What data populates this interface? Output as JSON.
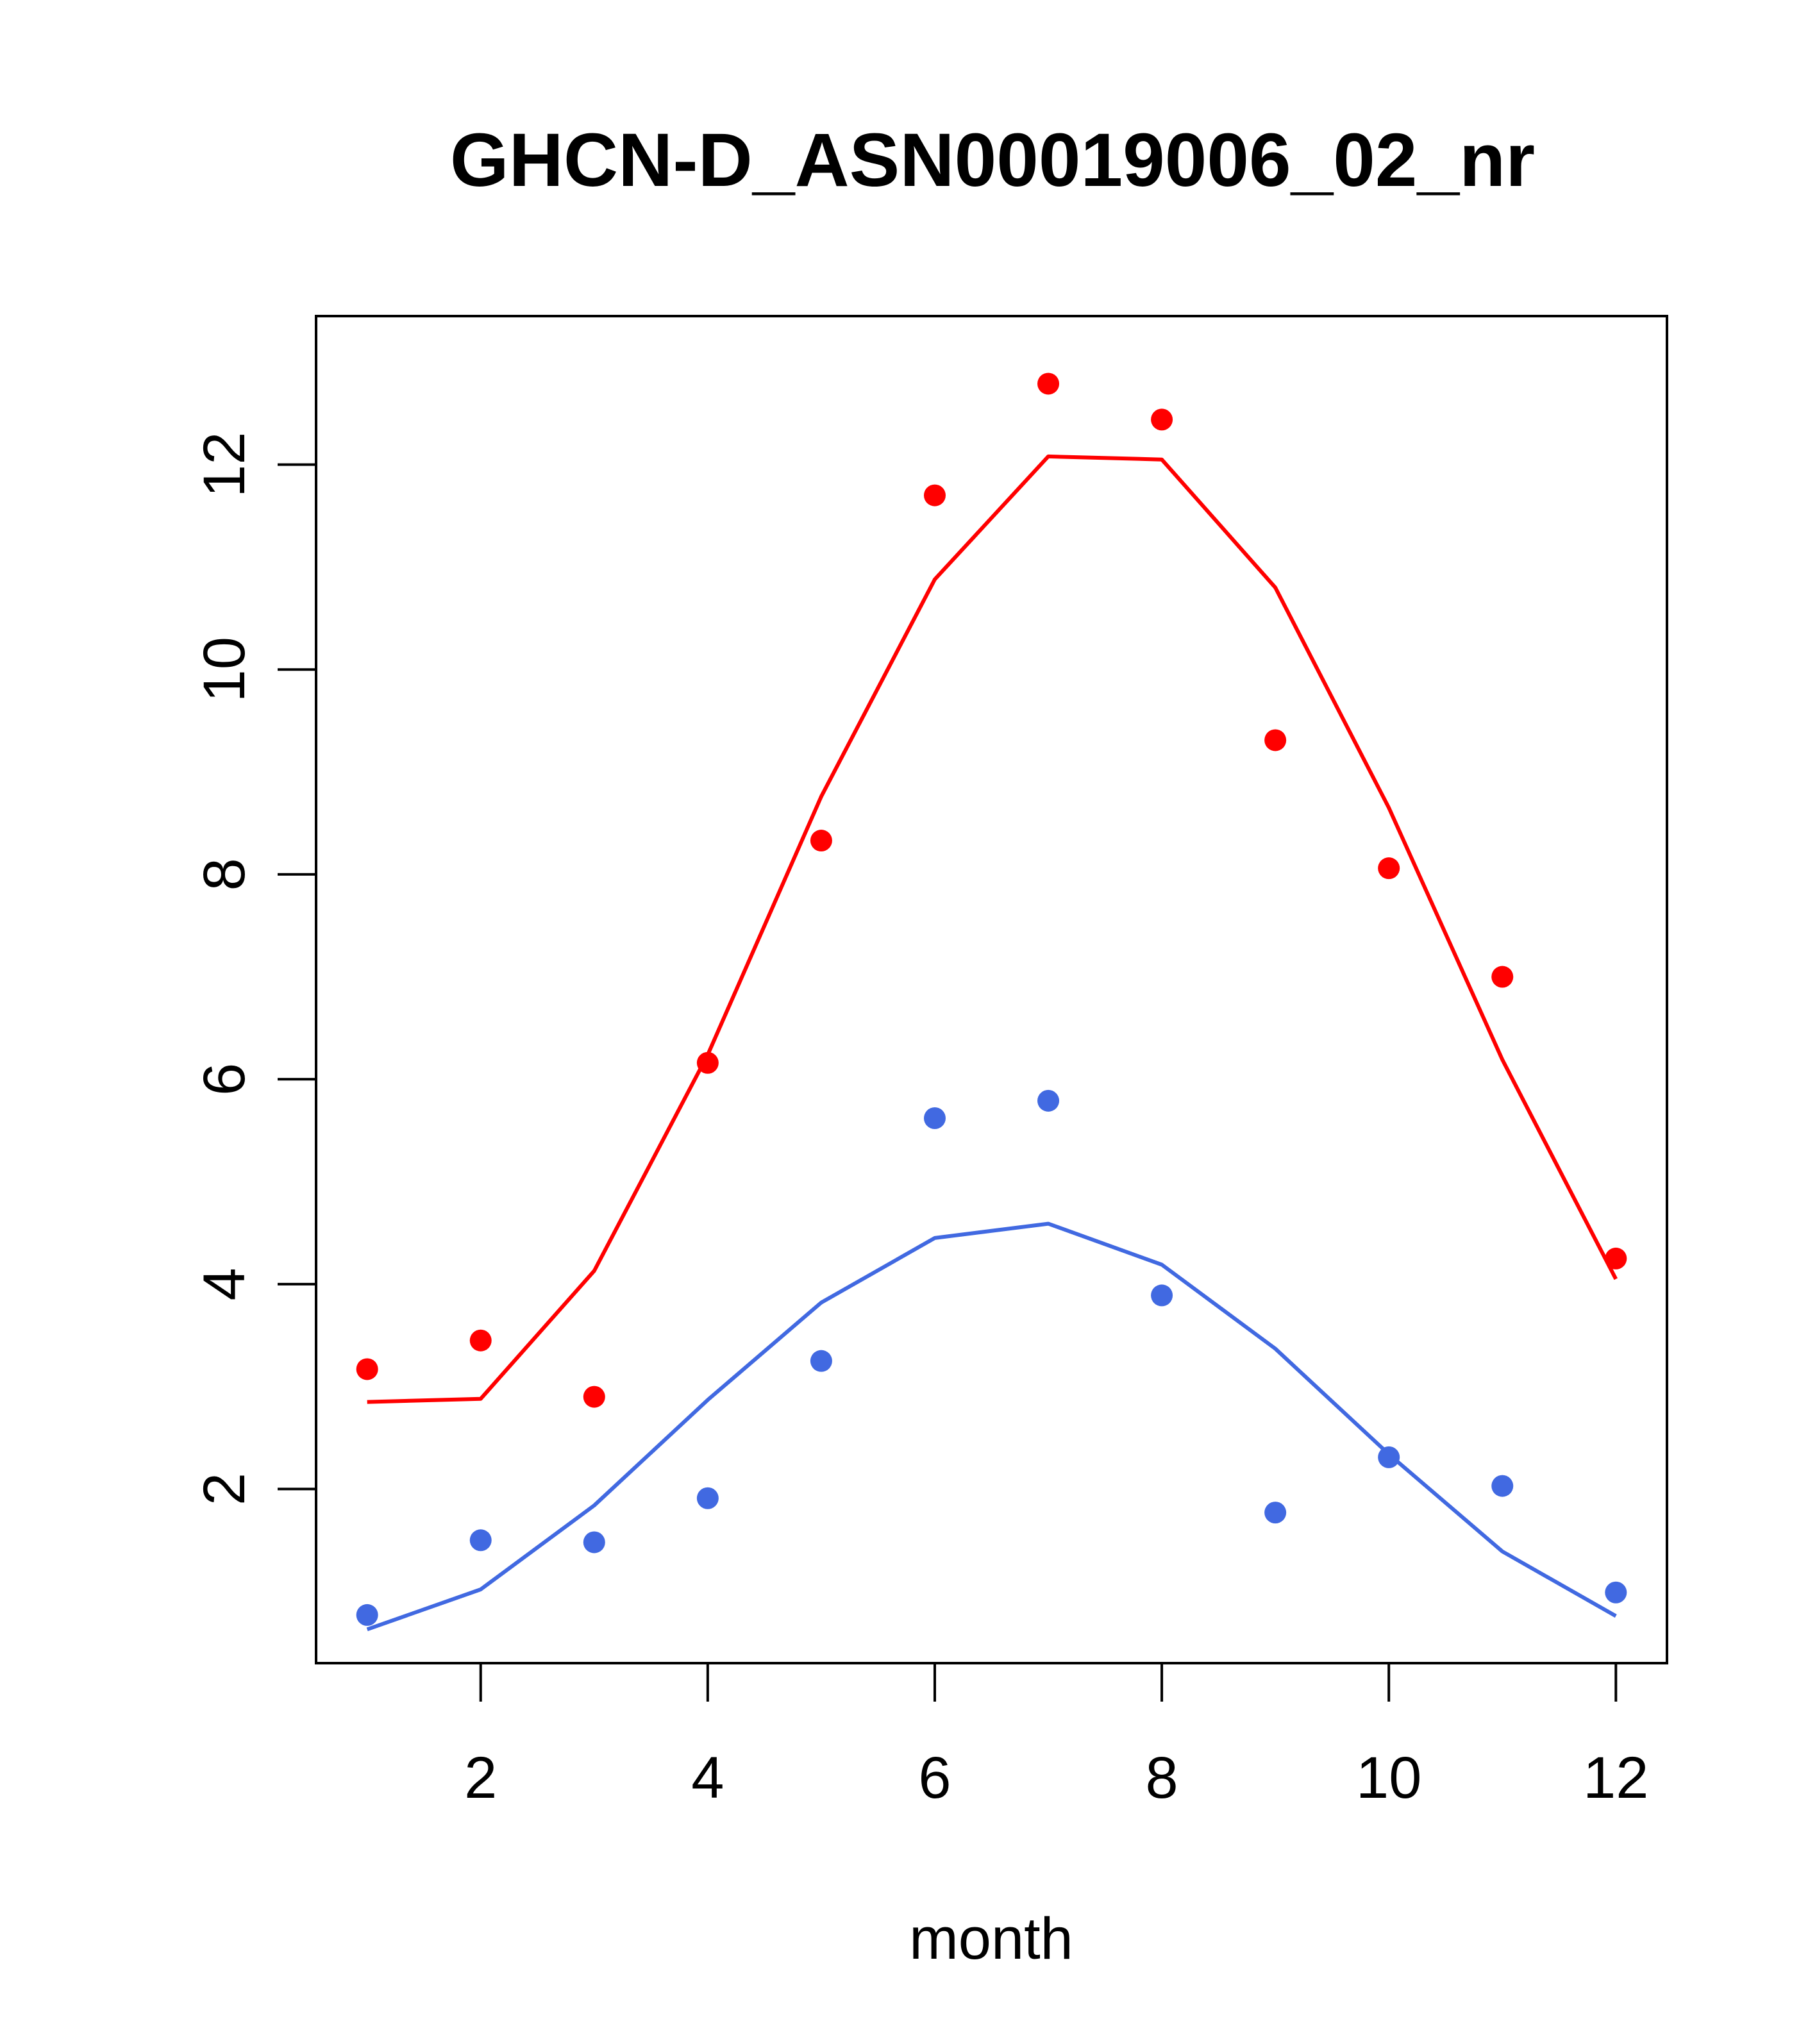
{
  "chart_data": {
    "type": "line",
    "title": "GHCN-D_ASN00019006_02_nr",
    "xlabel": "month",
    "ylabel": "",
    "xlim": [
      0.55,
      12.45
    ],
    "ylim": [
      0.3,
      13.45
    ],
    "x_ticks": [
      2,
      4,
      6,
      8,
      10,
      12
    ],
    "y_ticks": [
      2,
      4,
      6,
      8,
      10,
      12
    ],
    "grid": false,
    "legend": "none",
    "x": [
      1,
      2,
      3,
      4,
      5,
      6,
      7,
      8,
      9,
      10,
      11,
      12
    ],
    "series": [
      {
        "color": "#ff0000",
        "points": [
          3.17,
          3.45,
          2.9,
          6.16,
          8.33,
          11.7,
          12.79,
          12.44,
          9.31,
          8.06,
          7.0,
          4.25
        ],
        "line": [
          2.85,
          2.88,
          4.13,
          6.24,
          8.76,
          10.88,
          12.08,
          12.05,
          10.8,
          8.65,
          6.19,
          4.05
        ]
      },
      {
        "color": "#4169e1",
        "points": [
          0.77,
          1.5,
          1.48,
          1.91,
          3.25,
          5.62,
          5.79,
          3.89,
          1.77,
          2.31,
          2.03,
          0.99
        ],
        "line": [
          0.63,
          1.02,
          1.84,
          2.87,
          3.82,
          4.45,
          4.59,
          4.19,
          3.37,
          2.34,
          1.39,
          0.76
        ]
      }
    ]
  }
}
